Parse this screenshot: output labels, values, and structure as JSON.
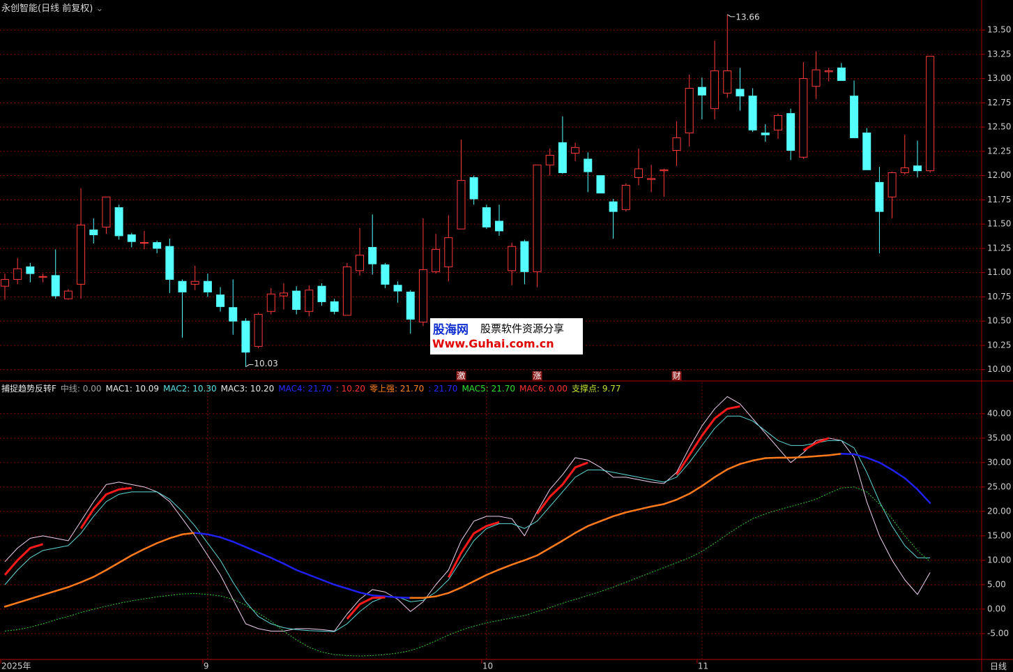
{
  "chart_data": [
    {
      "type": "candlestick",
      "title": "永创智能(日线 前复权)",
      "categories": [
        "2025年",
        null,
        null,
        null,
        null,
        null,
        null,
        null,
        null,
        null,
        null,
        null,
        null,
        null,
        null,
        null,
        "9",
        null,
        null,
        null,
        null,
        null,
        null,
        null,
        null,
        null,
        null,
        null,
        null,
        null,
        null,
        null,
        null,
        null,
        null,
        null,
        null,
        null,
        "10",
        null,
        null,
        null,
        null,
        null,
        null,
        null,
        null,
        null,
        null,
        null,
        null,
        null,
        null,
        null,
        null,
        "11",
        null,
        null,
        null,
        null,
        null,
        null,
        null,
        null,
        null,
        null,
        null,
        null,
        null,
        null,
        null,
        null,
        null,
        null
      ],
      "signal_labels": [
        null,
        null,
        null,
        null,
        null,
        null,
        null,
        null,
        null,
        null,
        null,
        null,
        null,
        null,
        null,
        null,
        null,
        null,
        null,
        null,
        null,
        null,
        null,
        null,
        null,
        null,
        null,
        null,
        null,
        null,
        null,
        null,
        null,
        null,
        null,
        null,
        "激",
        null,
        null,
        null,
        null,
        null,
        "涨",
        null,
        null,
        null,
        null,
        null,
        null,
        null,
        null,
        null,
        null,
        "财",
        null,
        null,
        null,
        null,
        null,
        null,
        null,
        null,
        null,
        null,
        null,
        null,
        null,
        null,
        null,
        null,
        null,
        null,
        null,
        null
      ],
      "open": [
        10.86,
        10.93,
        11.06,
        10.96,
        10.97,
        10.73,
        10.88,
        11.44,
        11.47,
        11.67,
        11.39,
        11.31,
        11.31,
        11.27,
        10.91,
        10.88,
        10.91,
        10.77,
        10.64,
        10.5,
        10.24,
        10.6,
        10.76,
        10.81,
        10.6,
        10.86,
        10.7,
        10.56,
        11.02,
        11.26,
        11.08,
        10.87,
        10.8,
        10.49,
        11.01,
        11.06,
        11.45,
        11.98,
        11.67,
        11.53,
        11.02,
        11.32,
        11.01,
        12.11,
        12.34,
        12.23,
        12.17,
        12.0,
        11.73,
        11.65,
        11.98,
        11.96,
        12.05,
        12.26,
        12.44,
        12.91,
        12.69,
        12.85,
        12.89,
        12.82,
        12.44,
        12.47,
        12.64,
        12.19,
        12.92,
        13.07,
        13.11,
        12.82,
        12.44,
        11.93,
        11.78,
        12.03,
        12.1,
        12.05
      ],
      "high": [
        10.99,
        11.15,
        11.1,
        10.99,
        11.24,
        10.83,
        11.87,
        11.56,
        11.78,
        11.7,
        11.41,
        11.43,
        11.33,
        11.35,
        10.93,
        11.07,
        10.99,
        10.85,
        10.93,
        10.53,
        10.59,
        10.84,
        10.89,
        10.86,
        10.87,
        10.89,
        10.73,
        11.1,
        11.46,
        11.6,
        11.1,
        10.91,
        10.82,
        11.56,
        11.4,
        11.59,
        12.37,
        12.0,
        11.7,
        11.7,
        11.31,
        11.34,
        12.11,
        12.28,
        12.61,
        12.34,
        12.24,
        12.0,
        11.76,
        11.92,
        12.28,
        12.11,
        12.07,
        12.56,
        13.04,
        13.01,
        13.39,
        13.66,
        13.11,
        12.9,
        12.53,
        12.64,
        12.69,
        13.17,
        13.28,
        13.11,
        13.16,
        12.98,
        12.49,
        12.09,
        12.04,
        12.42,
        12.36,
        13.23
      ],
      "low": [
        10.72,
        10.88,
        10.9,
        10.9,
        10.73,
        10.72,
        10.73,
        11.3,
        11.4,
        11.34,
        11.26,
        11.24,
        11.2,
        10.79,
        10.33,
        10.82,
        10.75,
        10.6,
        10.36,
        10.03,
        10.22,
        10.57,
        10.62,
        10.57,
        10.55,
        10.66,
        10.57,
        10.56,
        10.97,
        10.98,
        10.84,
        10.69,
        10.37,
        10.45,
        10.99,
        10.91,
        11.45,
        11.7,
        11.45,
        11.38,
        10.87,
        10.88,
        10.85,
        12.0,
        12.02,
        12.15,
        11.83,
        11.82,
        11.35,
        11.63,
        11.9,
        11.83,
        11.78,
        12.1,
        12.3,
        12.58,
        12.58,
        12.8,
        12.67,
        12.45,
        12.35,
        12.38,
        12.16,
        12.17,
        12.79,
        12.97,
        12.98,
        12.39,
        12.06,
        11.2,
        11.56,
        12.01,
        11.98,
        12.03
      ],
      "close": [
        10.93,
        11.04,
        10.99,
        10.96,
        10.76,
        10.81,
        11.49,
        11.39,
        11.78,
        11.38,
        11.32,
        11.31,
        11.25,
        10.93,
        10.8,
        10.91,
        10.8,
        10.65,
        10.5,
        10.18,
        10.57,
        10.78,
        10.79,
        10.62,
        10.82,
        10.7,
        10.6,
        11.06,
        11.18,
        11.09,
        10.88,
        10.81,
        10.52,
        11.03,
        11.24,
        11.36,
        11.95,
        11.76,
        11.47,
        11.43,
        11.27,
        11.01,
        12.11,
        12.21,
        12.03,
        12.29,
        12.04,
        11.82,
        11.63,
        11.9,
        12.07,
        11.97,
        12.06,
        12.39,
        12.9,
        12.83,
        13.08,
        13.08,
        12.82,
        12.47,
        12.42,
        12.62,
        12.26,
        13.0,
        13.09,
        13.08,
        12.98,
        12.39,
        12.06,
        11.63,
        12.03,
        12.08,
        12.05,
        13.23
      ],
      "high_label": 13.66,
      "low_label": 10.03,
      "up_color": "#ff3a3a",
      "down_color": "#54ffff",
      "ylim": [
        9.89,
        13.81
      ],
      "yticks": [
        {
          "value": 10,
          "label": "10.00"
        },
        {
          "value": 10.25,
          "label": "10.25"
        },
        {
          "value": 10.5,
          "label": "10.50"
        },
        {
          "value": 10.75,
          "label": "10.75"
        },
        {
          "value": 11,
          "label": "11.00"
        },
        {
          "value": 11.25,
          "label": "11.25"
        },
        {
          "value": 11.5,
          "label": "11.50"
        },
        {
          "value": 11.75,
          "label": "11.75"
        },
        {
          "value": 12,
          "label": "12.00"
        },
        {
          "value": 12.25,
          "label": "12.25"
        },
        {
          "value": 12.5,
          "label": "12.50"
        },
        {
          "value": 12.75,
          "label": "12.75"
        },
        {
          "value": 13,
          "label": "13.00"
        },
        {
          "value": 13.25,
          "label": "13.25"
        },
        {
          "value": 13.5,
          "label": "13.50"
        }
      ],
      "grid": true
    },
    {
      "type": "line",
      "title": "捕捉趋势反转F",
      "legend": [
        {
          "text": "中线: 0.00",
          "color": "#a0a0a0"
        },
        {
          "text": "MAC1: 10.09",
          "color": "#e8e8e8"
        },
        {
          "text": "MAC2: 10.30",
          "color": "#5fe0e0"
        },
        {
          "text": "MAC3: 10.20",
          "color": "#e8e8e8"
        },
        {
          "text": "MAC4: 21.70",
          "color": "#2828ff"
        },
        {
          "text": ": 10.20",
          "color": "#ff3030"
        },
        {
          "text": "零上强: 21.70",
          "color": "#ff8020"
        },
        {
          "text": ": 21.70",
          "color": "#2828ff"
        },
        {
          "text": "MAC5: 21.70",
          "color": "#30e030"
        },
        {
          "text": "MAC6: 0.00",
          "color": "#ff3030"
        },
        {
          "text": "支撑点: 9.77",
          "color": "#c0e030"
        }
      ],
      "series": [
        {
          "color": "#f0d0f0",
          "width": 1,
          "values": [
            9.7,
            12.5,
            14.5,
            15,
            14.5,
            14,
            18,
            22,
            25.5,
            26,
            25.5,
            25,
            24,
            22,
            18.5,
            15,
            11,
            7,
            2,
            -3,
            -4,
            -4.5,
            -4.5,
            -4,
            -4,
            -4.2,
            -4.5,
            -1,
            2,
            4,
            3.5,
            2,
            -0.5,
            1.5,
            5,
            8,
            14,
            18,
            19,
            19,
            18.5,
            15,
            20,
            24.5,
            27.5,
            31,
            30.5,
            29,
            27,
            27,
            26.5,
            26,
            25.7,
            28,
            33,
            37.5,
            41,
            43.5,
            42,
            39,
            36,
            33,
            30,
            32,
            34.5,
            35,
            34.5,
            31,
            22,
            15,
            10,
            6,
            3,
            7.5
          ]
        },
        {
          "color": "#5fd8d8",
          "width": 1,
          "values": [
            5,
            8,
            10.5,
            12,
            12.5,
            13,
            15.5,
            19,
            22,
            23.5,
            24,
            24,
            24,
            22.5,
            20,
            17,
            13.5,
            10,
            5.5,
            1.5,
            -1.5,
            -3,
            -3.8,
            -4.2,
            -4.4,
            -4.5,
            -4.6,
            -3,
            -0.5,
            1.5,
            2.5,
            2.5,
            1.5,
            1.8,
            3.5,
            6,
            10,
            14,
            16.5,
            17.5,
            17.5,
            16.5,
            18,
            21,
            24,
            27,
            28.5,
            28.5,
            28,
            27.5,
            27,
            26.5,
            26,
            27,
            30,
            33.5,
            37,
            39.5,
            39.5,
            38.5,
            36.5,
            34.5,
            33.5,
            33.5,
            34,
            34.5,
            34.5,
            33,
            28,
            22,
            17,
            13,
            10.5,
            10.5
          ]
        },
        {
          "up_color": "#ff7a1a",
          "down_color": "#2020f0",
          "width": 2.5,
          "values": [
            0.5,
            1.3,
            2.1,
            2.9,
            3.7,
            4.5,
            5.5,
            6.6,
            8,
            9.5,
            11,
            12.3,
            13.5,
            14.5,
            15.3,
            15.6,
            15.3,
            14.7,
            13.8,
            12.7,
            11.6,
            10.5,
            9.3,
            8,
            7,
            6,
            5,
            4.2,
            3.4,
            2.8,
            2.6,
            2.4,
            2.3,
            2.3,
            2.6,
            3.3,
            4.4,
            5.7,
            7,
            8.1,
            9.1,
            10,
            11,
            12.5,
            14,
            15.6,
            17,
            18,
            19,
            19.8,
            20.4,
            21,
            21.5,
            22.4,
            23.6,
            25.2,
            27,
            28.6,
            29.7,
            30.4,
            30.9,
            31,
            31,
            31.1,
            31.3,
            31.5,
            31.8,
            31.7,
            31,
            30,
            28.5,
            26.8,
            24.5,
            21.7
          ]
        },
        {
          "color": "#ff1a1a",
          "width": 3,
          "values": [
            7,
            10,
            12.5,
            13.3,
            null,
            null,
            16.5,
            20.5,
            23.5,
            24.5,
            24.8,
            null,
            null,
            null,
            null,
            null,
            null,
            null,
            null,
            null,
            null,
            null,
            null,
            null,
            null,
            null,
            null,
            -2,
            1,
            2.3,
            2.4,
            null,
            null,
            null,
            null,
            6.5,
            11.5,
            15.5,
            17,
            17.8,
            null,
            null,
            19.5,
            23,
            25.5,
            29,
            30,
            null,
            null,
            null,
            null,
            null,
            null,
            27.5,
            31.5,
            35.5,
            39,
            41,
            41.5,
            null,
            null,
            null,
            null,
            32.5,
            34,
            35,
            null,
            null,
            null,
            null,
            null,
            null,
            null,
            null
          ]
        },
        {
          "color": "#30d030",
          "width": 1,
          "dashed": true,
          "values": [
            -4.5,
            -4.2,
            -3.7,
            -3,
            -2.2,
            -1.5,
            -0.7,
            0,
            0.6,
            1.2,
            1.7,
            2.1,
            2.5,
            2.8,
            3.1,
            3.2,
            3,
            2.7,
            2,
            0.8,
            -0.8,
            -2.5,
            -4.5,
            -6.3,
            -7.8,
            -8.8,
            -9.3,
            -9.5,
            -9.6,
            -9.5,
            -9.3,
            -9,
            -8.5,
            -7.6,
            -6.5,
            -5.3,
            -4.3,
            -3.5,
            -2.8,
            -2.3,
            -1.8,
            -1.3,
            -0.5,
            0.3,
            1.2,
            2,
            2.8,
            3.6,
            4.5,
            5.5,
            6.5,
            7.5,
            8.5,
            9.5,
            10.5,
            11.8,
            13.5,
            15.3,
            17,
            18.5,
            19.5,
            20.3,
            21,
            21.7,
            22.5,
            23.7,
            24.8,
            25,
            24,
            21.5,
            18.5,
            15,
            12,
            9.7
          ]
        }
      ],
      "ylim": [
        -10.3,
        46.4
      ],
      "yticks": [
        {
          "value": -5,
          "label": "-5.00"
        },
        {
          "value": 0,
          "label": "0.00"
        },
        {
          "value": 5,
          "label": "5.00"
        },
        {
          "value": 10,
          "label": "10.00"
        },
        {
          "value": 15,
          "label": "15.00"
        },
        {
          "value": 20,
          "label": "20.00"
        },
        {
          "value": 25,
          "label": "25.00"
        },
        {
          "value": 30,
          "label": "30.00"
        },
        {
          "value": 35,
          "label": "35.00"
        },
        {
          "value": 40,
          "label": "40.00"
        }
      ],
      "grid": true
    }
  ],
  "watermark": {
    "site": "股海网",
    "slogan": "股票软件资源分享",
    "url": "Www.Guhai.com.cn"
  },
  "period_label": "日线"
}
